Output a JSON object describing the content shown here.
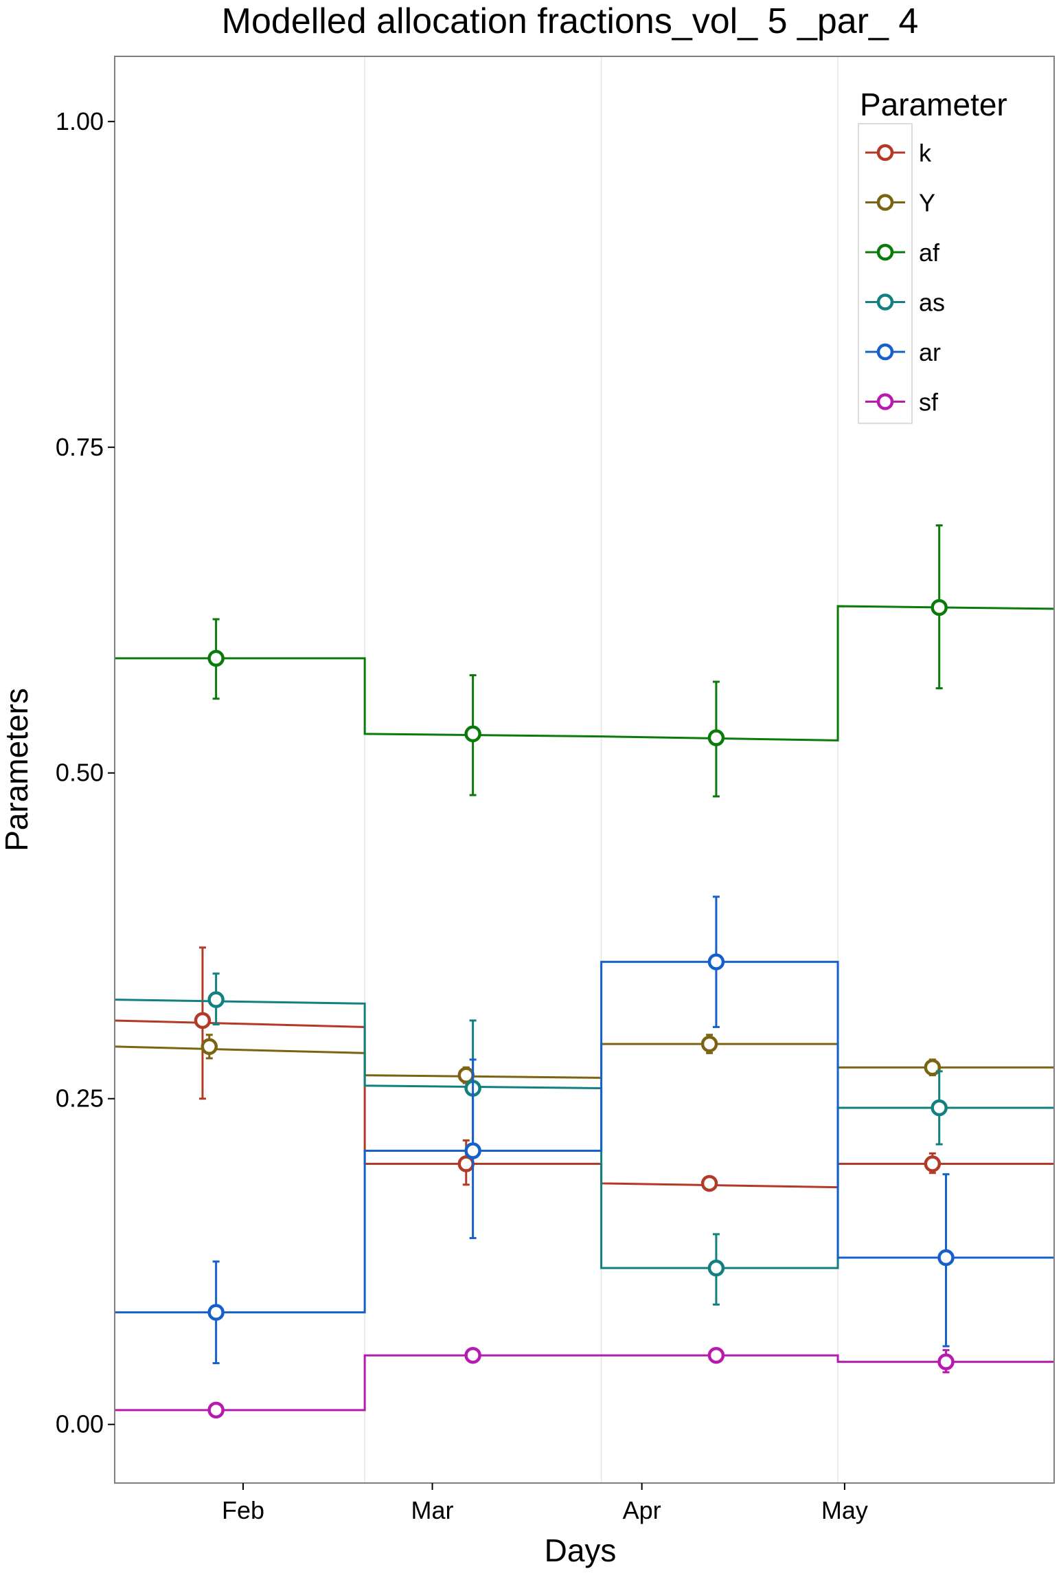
{
  "chart_data": {
    "type": "line",
    "title": "Modelled allocation fractions_vol_ 5 _par_ 4",
    "xlabel": "Days",
    "ylabel": "Parameters",
    "x_ticks": [
      "Feb",
      "Mar",
      "Apr",
      "May"
    ],
    "y_ticks": [
      "0.00",
      "0.25",
      "0.50",
      "0.75",
      "1.00"
    ],
    "ylim": [
      -0.045,
      1.05
    ],
    "grid": true,
    "legend": {
      "title": "Parameter",
      "position": "top-right"
    },
    "colors": {
      "k": "#b23a26",
      "Y": "#7b6312",
      "af": "#0a7a0a",
      "as": "#128080",
      "ar": "#1560cc",
      "sf": "#b81ab0"
    },
    "periods": [
      {
        "start": "2014-01-13",
        "end": "2014-02-19"
      },
      {
        "start": "2014-02-19",
        "end": "2014-03-26"
      },
      {
        "start": "2014-03-26",
        "end": "2014-04-30"
      },
      {
        "start": "2014-04-30",
        "end": "2014-06-01"
      }
    ],
    "series": [
      {
        "name": "k",
        "step_values": [
          [
            0.31,
            0.305
          ],
          [
            0.2,
            0.2
          ],
          [
            0.185,
            0.182
          ],
          [
            0.2,
            0.2
          ]
        ],
        "points": [
          {
            "x": "2014-01-26",
            "y": 0.31,
            "ymin": 0.25,
            "ymax": 0.366
          },
          {
            "x": "2014-03-06",
            "y": 0.2,
            "ymin": 0.184,
            "ymax": 0.218
          },
          {
            "x": "2014-04-11",
            "y": 0.185,
            "ymin": 0.18,
            "ymax": 0.19
          },
          {
            "x": "2014-05-14",
            "y": 0.2,
            "ymin": 0.193,
            "ymax": 0.208
          }
        ]
      },
      {
        "name": "Y",
        "step_values": [
          [
            0.29,
            0.285
          ],
          [
            0.268,
            0.266
          ],
          [
            0.292,
            0.292
          ],
          [
            0.274,
            0.274
          ]
        ],
        "points": [
          {
            "x": "2014-01-27",
            "y": 0.29,
            "ymin": 0.281,
            "ymax": 0.299
          },
          {
            "x": "2014-03-06",
            "y": 0.268,
            "ymin": 0.262,
            "ymax": 0.274
          },
          {
            "x": "2014-04-11",
            "y": 0.292,
            "ymin": 0.285,
            "ymax": 0.299
          },
          {
            "x": "2014-05-14",
            "y": 0.274,
            "ymin": 0.268,
            "ymax": 0.28
          }
        ]
      },
      {
        "name": "af",
        "step_values": [
          [
            0.588,
            0.588
          ],
          [
            0.53,
            0.528
          ],
          [
            0.528,
            0.525
          ],
          [
            0.628,
            0.626
          ]
        ],
        "points": [
          {
            "x": "2014-01-28",
            "y": 0.588,
            "ymin": 0.557,
            "ymax": 0.618
          },
          {
            "x": "2014-03-07",
            "y": 0.53,
            "ymin": 0.483,
            "ymax": 0.575
          },
          {
            "x": "2014-04-12",
            "y": 0.527,
            "ymin": 0.482,
            "ymax": 0.57
          },
          {
            "x": "2014-05-15",
            "y": 0.627,
            "ymin": 0.565,
            "ymax": 0.69
          }
        ]
      },
      {
        "name": "as",
        "step_values": [
          [
            0.326,
            0.323
          ],
          [
            0.26,
            0.258
          ],
          [
            0.12,
            0.12
          ],
          [
            0.243,
            0.243
          ]
        ],
        "points": [
          {
            "x": "2014-01-28",
            "y": 0.326,
            "ymin": 0.307,
            "ymax": 0.346
          },
          {
            "x": "2014-03-07",
            "y": 0.258,
            "ymin": 0.21,
            "ymax": 0.31
          },
          {
            "x": "2014-04-12",
            "y": 0.12,
            "ymin": 0.092,
            "ymax": 0.146
          },
          {
            "x": "2014-05-15",
            "y": 0.243,
            "ymin": 0.215,
            "ymax": 0.271
          }
        ]
      },
      {
        "name": "ar",
        "step_values": [
          [
            0.086,
            0.086
          ],
          [
            0.21,
            0.21
          ],
          [
            0.355,
            0.355
          ],
          [
            0.128,
            0.128
          ]
        ],
        "points": [
          {
            "x": "2014-01-28",
            "y": 0.086,
            "ymin": 0.047,
            "ymax": 0.125
          },
          {
            "x": "2014-03-07",
            "y": 0.21,
            "ymin": 0.143,
            "ymax": 0.28
          },
          {
            "x": "2014-04-12",
            "y": 0.355,
            "ymin": 0.305,
            "ymax": 0.405
          },
          {
            "x": "2014-05-16",
            "y": 0.128,
            "ymin": 0.06,
            "ymax": 0.192
          }
        ]
      },
      {
        "name": "sf",
        "step_values": [
          [
            0.011,
            0.011
          ],
          [
            0.053,
            0.053
          ],
          [
            0.053,
            0.053
          ],
          [
            0.048,
            0.048
          ]
        ],
        "points": [
          {
            "x": "2014-01-28",
            "y": 0.011,
            "ymin": 0.011,
            "ymax": 0.011
          },
          {
            "x": "2014-03-07",
            "y": 0.053,
            "ymin": 0.053,
            "ymax": 0.053
          },
          {
            "x": "2014-04-12",
            "y": 0.053,
            "ymin": 0.053,
            "ymax": 0.053
          },
          {
            "x": "2014-05-16",
            "y": 0.048,
            "ymin": 0.04,
            "ymax": 0.057
          }
        ]
      }
    ]
  }
}
